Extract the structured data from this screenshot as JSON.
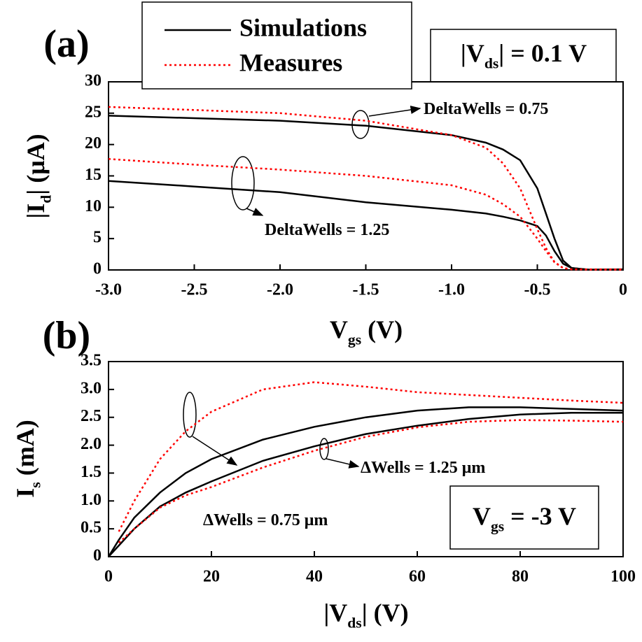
{
  "chart_data": [
    {
      "type": "line",
      "panel_label": "(a)",
      "xlabel": [
        "V",
        "gs",
        " (V)"
      ],
      "ylabel": [
        "|I",
        "d",
        "| (μA)"
      ],
      "x": [
        -3,
        -2.5,
        -2,
        -1.5,
        -1,
        -0.8,
        -0.7,
        -0.6,
        -0.5,
        -0.45,
        -0.4,
        -0.35,
        -0.3,
        -0.2,
        0
      ],
      "xlim": [
        -3,
        0
      ],
      "xticks": [
        {
          "value": -3,
          "label": "-3.0"
        },
        {
          "value": -2.5,
          "label": "-2.5"
        },
        {
          "value": -2,
          "label": "-2.0"
        },
        {
          "value": -1.5,
          "label": "-1.5"
        },
        {
          "value": -1,
          "label": "-1.0"
        },
        {
          "value": -0.5,
          "label": "-0.5"
        },
        0
      ],
      "ylim": [
        0,
        30
      ],
      "yticks": [
        0,
        5,
        10,
        15,
        20,
        25,
        30
      ],
      "legend": "top",
      "series": [
        {
          "name": "Simulations",
          "color": "#000000",
          "dash": "solid",
          "curves": [
            [
              24.6,
              24.2,
              23.8,
              23.0,
              21.5,
              20.3,
              19.2,
              17.5,
              13.0,
              9.0,
              5.0,
              1.5,
              0.3,
              0.05,
              0.1
            ],
            [
              14.2,
              13.3,
              12.4,
              10.8,
              9.6,
              9.0,
              8.5,
              7.9,
              7.0,
              5.5,
              3.0,
              1.0,
              0.3,
              0.05,
              0.05
            ]
          ]
        },
        {
          "name": "Measures",
          "color": "#ff0000",
          "dash": "dotted",
          "curves": [
            [
              26.0,
              25.5,
              25.0,
              23.8,
              21.5,
              19.5,
              17.0,
              13.0,
              6.5,
              3.5,
              1.2,
              0.3,
              0.1,
              0.1,
              0.1
            ],
            [
              17.7,
              16.8,
              16.0,
              15.0,
              13.5,
              12.0,
              10.5,
              8.5,
              5.0,
              3.0,
              1.3,
              0.3,
              0.1,
              0.05,
              0.05
            ]
          ]
        }
      ],
      "annotations": [
        [
          "DeltaWells = 0.75"
        ],
        [
          "DeltaWells = 1.25"
        ],
        [
          "|V",
          "ds",
          "| = 0.1 V"
        ]
      ]
    },
    {
      "type": "line",
      "panel_label": "(b)",
      "xlabel": [
        "|V",
        "ds",
        "| (V)"
      ],
      "ylabel": [
        "I",
        "s",
        " (mA)"
      ],
      "x": [
        0,
        2,
        5,
        10,
        15,
        20,
        30,
        40,
        50,
        60,
        70,
        80,
        90,
        100
      ],
      "xlim": [
        0,
        100
      ],
      "xticks": [
        0,
        20,
        40,
        60,
        80,
        100
      ],
      "ylim": [
        0,
        3.5
      ],
      "yticks": [
        0,
        0.5,
        {
          "value": 1,
          "label": "1.0"
        },
        1.5,
        {
          "value": 2,
          "label": "2.0"
        },
        2.5,
        {
          "value": 3,
          "label": "3.0"
        },
        3.5
      ],
      "series": [
        {
          "color": "#000000",
          "dash": "solid",
          "curves": [
            [
              0,
              0.3,
              0.7,
              1.15,
              1.5,
              1.75,
              2.1,
              2.33,
              2.5,
              2.62,
              2.68,
              2.68,
              2.65,
              2.62
            ],
            [
              0,
              0.2,
              0.5,
              0.9,
              1.15,
              1.35,
              1.72,
              1.98,
              2.2,
              2.35,
              2.47,
              2.55,
              2.58,
              2.58
            ]
          ]
        },
        {
          "color": "#ff0000",
          "dash": "dotted",
          "curves": [
            [
              null,
              0.45,
              1.0,
              1.75,
              2.25,
              2.6,
              3.0,
              3.13,
              3.05,
              2.95,
              2.9,
              2.85,
              2.8,
              2.76
            ],
            [
              null,
              0.25,
              0.5,
              0.88,
              1.1,
              1.25,
              1.6,
              1.9,
              2.15,
              2.32,
              2.42,
              2.45,
              2.44,
              2.42
            ]
          ]
        }
      ],
      "annotations": [
        [
          "ΔWells = 1.25 μm"
        ],
        [
          "ΔWells = 0.75 μm"
        ],
        [
          "V",
          "gs",
          " = -3 V"
        ]
      ]
    }
  ]
}
